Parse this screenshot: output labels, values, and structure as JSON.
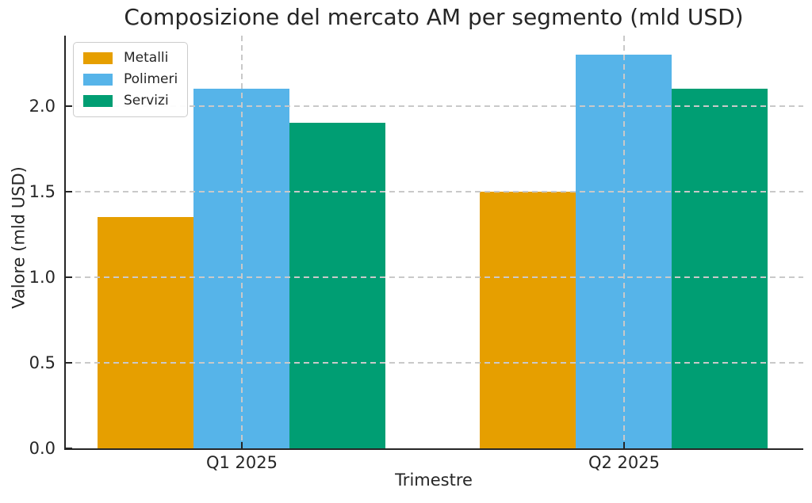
{
  "chart_data": {
    "type": "bar",
    "title": "Composizione del mercato AM per segmento (mld USD)",
    "xlabel": "Trimestre",
    "ylabel": "Valore (mld USD)",
    "categories": [
      "Q1 2025",
      "Q2 2025"
    ],
    "series": [
      {
        "name": "Metalli",
        "color": "#E69F00",
        "values": [
          1.35,
          1.5
        ]
      },
      {
        "name": "Polimeri",
        "color": "#56B4E9",
        "values": [
          2.1,
          2.3
        ]
      },
      {
        "name": "Servizi",
        "color": "#009E73",
        "values": [
          1.9,
          2.1
        ]
      }
    ],
    "ylim": [
      0,
      2.41
    ],
    "ytick_labels": [
      "0.0",
      "0.5",
      "1.0",
      "1.5",
      "2.0"
    ],
    "bar_width": 0.25,
    "grid": "dashed, both axes, drawn over bars",
    "legend_position": "upper left",
    "tick_direction": "in"
  },
  "colors": {
    "text": "#262626",
    "axis": "#262626",
    "grid": "#c9c9c9",
    "background": "#ffffff"
  }
}
